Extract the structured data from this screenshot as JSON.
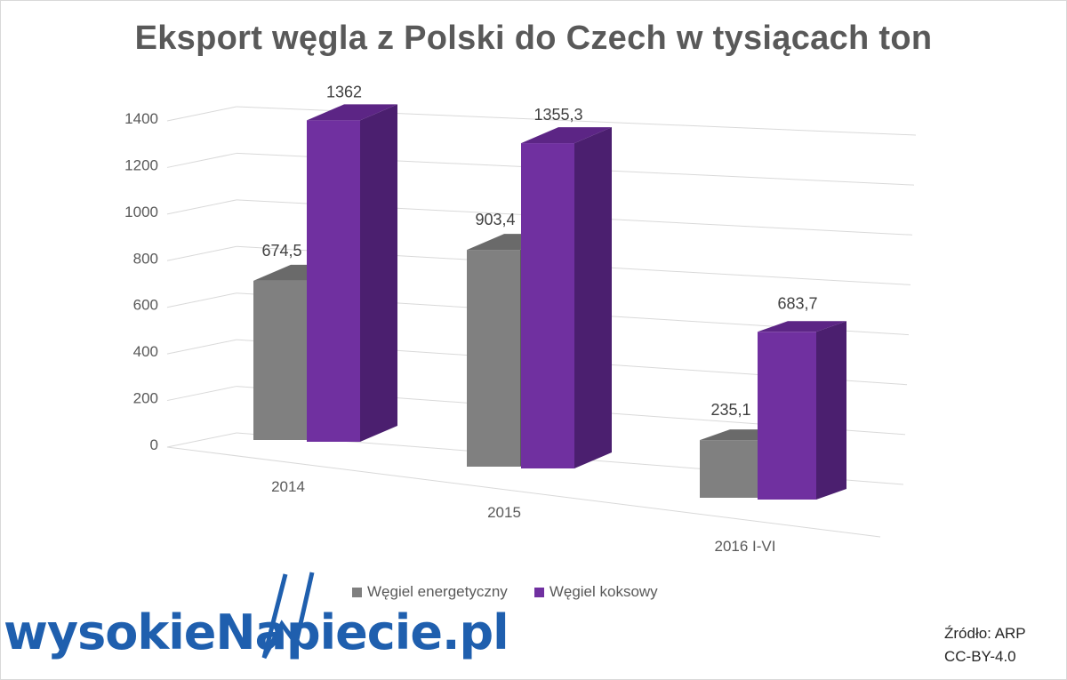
{
  "chart_data": {
    "type": "bar",
    "title": "Eksport węgla z Polski do Czech w tysiącach ton",
    "categories": [
      "2014",
      "2015",
      "2016 I-VI"
    ],
    "series": [
      {
        "name": "Węgiel energetyczny",
        "values": [
          674.5,
          903.4,
          235.1
        ],
        "labels": [
          "674,5",
          "903,4",
          "235,1"
        ],
        "color": "#7f7f7f"
      },
      {
        "name": "Węgiel koksowy",
        "values": [
          1362,
          1355.3,
          683.7
        ],
        "labels": [
          "1362",
          "1355,3",
          "683,7"
        ],
        "color": "#7030a0"
      }
    ],
    "yticks": [
      "0",
      "200",
      "400",
      "600",
      "800",
      "1000",
      "1200",
      "1400"
    ],
    "ylim": [
      0,
      1400
    ],
    "grid": true,
    "legend_position": "bottom",
    "style": "3D clustered column"
  },
  "logo": {
    "text": "wysokieNapiecie.pl"
  },
  "source": {
    "line1": "Źródło: ARP",
    "line2": "CC-BY-4.0"
  }
}
